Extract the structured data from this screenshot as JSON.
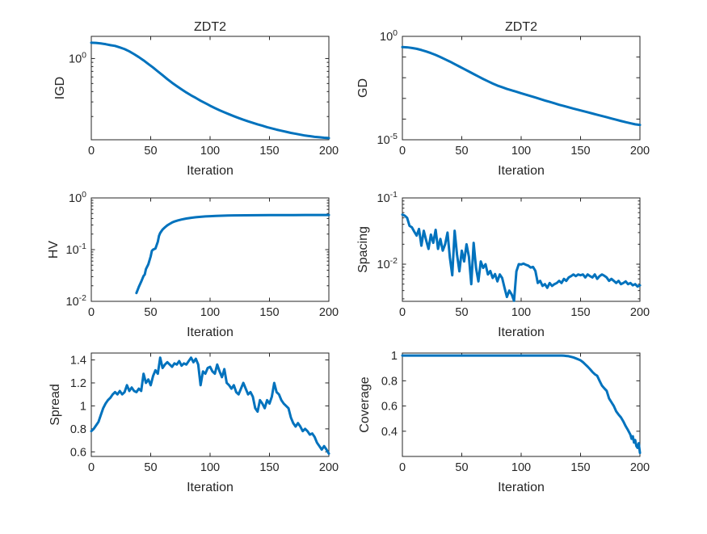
{
  "figure": {
    "background": "#ffffff",
    "axis_color": "#262626",
    "line_color": "#0072BD",
    "line_width": 3
  },
  "shared": {
    "xlabel": "Iteration",
    "xlim": [
      0,
      200
    ],
    "xticks": [
      {
        "v": 0,
        "label": "0"
      },
      {
        "v": 50,
        "label": "50"
      },
      {
        "v": 100,
        "label": "100"
      },
      {
        "v": 150,
        "label": "150"
      },
      {
        "v": 200,
        "label": "200"
      }
    ]
  },
  "chart_data": [
    {
      "type": "line",
      "id": "igd",
      "title": "ZDT2",
      "ylabel": "IGD",
      "xlabel": "Iteration",
      "yscale": "log",
      "ylim": [
        0.105,
        1.85
      ],
      "grid": false,
      "yticks": [
        {
          "v": 1,
          "base": "10",
          "exp": "0"
        }
      ],
      "extra_major_ticks": [],
      "log_minor_ticks": true,
      "x": [
        0,
        4,
        8,
        12,
        16,
        20,
        24,
        28,
        32,
        36,
        40,
        44,
        48,
        52,
        56,
        60,
        64,
        68,
        72,
        76,
        80,
        84,
        88,
        92,
        96,
        100,
        104,
        108,
        112,
        116,
        120,
        124,
        128,
        132,
        136,
        140,
        144,
        148,
        152,
        156,
        160,
        164,
        168,
        172,
        176,
        180,
        184,
        188,
        192,
        196,
        200
      ],
      "y": [
        1.55,
        1.54,
        1.52,
        1.49,
        1.45,
        1.42,
        1.36,
        1.3,
        1.22,
        1.13,
        1.04,
        0.95,
        0.86,
        0.78,
        0.7,
        0.63,
        0.565,
        0.51,
        0.465,
        0.425,
        0.39,
        0.36,
        0.335,
        0.31,
        0.29,
        0.27,
        0.253,
        0.238,
        0.225,
        0.213,
        0.202,
        0.192,
        0.183,
        0.175,
        0.168,
        0.161,
        0.155,
        0.149,
        0.144,
        0.139,
        0.135,
        0.131,
        0.127,
        0.124,
        0.121,
        0.118,
        0.116,
        0.114,
        0.1125,
        0.111,
        0.11
      ]
    },
    {
      "type": "line",
      "id": "gd",
      "title": "ZDT2",
      "ylabel": "GD",
      "xlabel": "Iteration",
      "yscale": "log",
      "ylim": [
        1e-05,
        1
      ],
      "grid": false,
      "yticks": [
        {
          "v": 1,
          "base": "10",
          "exp": "0"
        },
        {
          "v": 1e-05,
          "base": "10",
          "exp": "-5"
        }
      ],
      "extra_major_ticks": [
        0.1,
        0.01,
        0.001,
        0.0001
      ],
      "log_minor_ticks": false,
      "x": [
        0,
        4,
        8,
        12,
        16,
        20,
        24,
        28,
        32,
        36,
        40,
        44,
        48,
        52,
        56,
        60,
        64,
        68,
        72,
        76,
        80,
        84,
        88,
        92,
        96,
        100,
        104,
        108,
        112,
        116,
        120,
        124,
        128,
        132,
        136,
        140,
        144,
        148,
        152,
        156,
        160,
        164,
        168,
        172,
        176,
        180,
        184,
        188,
        192,
        196,
        200
      ],
      "y": [
        0.302,
        0.295,
        0.275,
        0.251,
        0.219,
        0.186,
        0.155,
        0.126,
        0.1,
        0.0776,
        0.0603,
        0.0457,
        0.0347,
        0.0263,
        0.02,
        0.0151,
        0.0115,
        0.0087,
        0.00676,
        0.00525,
        0.00417,
        0.00347,
        0.00288,
        0.00245,
        0.00209,
        0.00178,
        0.00151,
        0.00129,
        0.0011,
        0.00093,
        0.00079,
        0.00068,
        0.00058,
        0.00049,
        0.00043,
        0.00037,
        0.00032,
        0.00028,
        0.000245,
        0.000214,
        0.000186,
        0.000162,
        0.000141,
        0.000123,
        0.000107,
        9.3e-05,
        8.1e-05,
        7.1e-05,
        6.3e-05,
        5.6e-05,
        5.2e-05
      ]
    },
    {
      "type": "line",
      "id": "hv",
      "title": "",
      "ylabel": "HV",
      "xlabel": "Iteration",
      "yscale": "log",
      "ylim": [
        0.01,
        1
      ],
      "grid": false,
      "yticks": [
        {
          "v": 1,
          "base": "10",
          "exp": "0"
        },
        {
          "v": 0.1,
          "base": "10",
          "exp": "-1"
        },
        {
          "v": 0.01,
          "base": "10",
          "exp": "-2"
        }
      ],
      "extra_major_ticks": [],
      "log_minor_ticks": true,
      "x": [
        38,
        40,
        42,
        44,
        45,
        46,
        48,
        50,
        51,
        52,
        54,
        56,
        57,
        58,
        60,
        62,
        64,
        66,
        68,
        70,
        73,
        76,
        80,
        84,
        88,
        92,
        96,
        100,
        105,
        110,
        115,
        120,
        130,
        140,
        150,
        160,
        170,
        180,
        190,
        200
      ],
      "y": [
        0.0145,
        0.019,
        0.024,
        0.031,
        0.033,
        0.042,
        0.052,
        0.074,
        0.095,
        0.1,
        0.105,
        0.142,
        0.185,
        0.21,
        0.245,
        0.27,
        0.295,
        0.315,
        0.335,
        0.35,
        0.368,
        0.383,
        0.4,
        0.413,
        0.424,
        0.432,
        0.439,
        0.444,
        0.45,
        0.454,
        0.457,
        0.459,
        0.462,
        0.464,
        0.465,
        0.466,
        0.4665,
        0.467,
        0.4675,
        0.468
      ]
    },
    {
      "type": "line",
      "id": "spacing",
      "title": "",
      "ylabel": "Spacing",
      "xlabel": "Iteration",
      "yscale": "log",
      "ylim": [
        0.00275,
        0.1
      ],
      "grid": false,
      "yticks": [
        {
          "v": 0.1,
          "base": "10",
          "exp": "-1"
        },
        {
          "v": 0.01,
          "base": "10",
          "exp": "-2"
        }
      ],
      "extra_major_ticks": [],
      "log_minor_ticks": true,
      "x": [
        0,
        2,
        4,
        6,
        8,
        10,
        12,
        14,
        16,
        18,
        20,
        22,
        24,
        26,
        28,
        30,
        32,
        34,
        36,
        38,
        40,
        42,
        44,
        46,
        48,
        50,
        52,
        54,
        56,
        58,
        60,
        62,
        64,
        66,
        68,
        70,
        72,
        74,
        76,
        78,
        80,
        82,
        84,
        86,
        88,
        90,
        92,
        94,
        96,
        98,
        100,
        102,
        104,
        106,
        108,
        110,
        112,
        114,
        116,
        118,
        120,
        122,
        124,
        126,
        128,
        130,
        132,
        134,
        136,
        138,
        140,
        142,
        144,
        146,
        148,
        150,
        152,
        154,
        156,
        158,
        160,
        162,
        164,
        166,
        168,
        170,
        172,
        174,
        176,
        178,
        180,
        182,
        184,
        186,
        188,
        190,
        192,
        194,
        196,
        198,
        200
      ],
      "y": [
        0.056,
        0.054,
        0.05,
        0.038,
        0.036,
        0.031,
        0.027,
        0.034,
        0.019,
        0.032,
        0.023,
        0.017,
        0.028,
        0.021,
        0.033,
        0.017,
        0.024,
        0.016,
        0.02,
        0.03,
        0.0125,
        0.0068,
        0.032,
        0.014,
        0.0078,
        0.016,
        0.011,
        0.02,
        0.013,
        0.005,
        0.021,
        0.0088,
        0.0055,
        0.011,
        0.0088,
        0.01,
        0.007,
        0.0079,
        0.0062,
        0.0071,
        0.0055,
        0.007,
        0.0062,
        0.0044,
        0.0032,
        0.004,
        0.0035,
        0.0028,
        0.0078,
        0.01,
        0.0099,
        0.0102,
        0.0098,
        0.0095,
        0.0089,
        0.0091,
        0.0079,
        0.0052,
        0.0056,
        0.0047,
        0.005,
        0.0044,
        0.0052,
        0.0047,
        0.005,
        0.0052,
        0.0056,
        0.0052,
        0.006,
        0.0056,
        0.0063,
        0.0066,
        0.007,
        0.0066,
        0.007,
        0.0068,
        0.007,
        0.0063,
        0.007,
        0.0066,
        0.0063,
        0.007,
        0.006,
        0.0066,
        0.007,
        0.0067,
        0.0063,
        0.0056,
        0.006,
        0.0056,
        0.0052,
        0.0056,
        0.005,
        0.0052,
        0.0055,
        0.005,
        0.0052,
        0.0048,
        0.005,
        0.0046,
        0.0048
      ]
    },
    {
      "type": "line",
      "id": "spread",
      "title": "",
      "ylabel": "Spread",
      "xlabel": "Iteration",
      "yscale": "linear",
      "ylim": [
        0.56,
        1.46
      ],
      "grid": false,
      "yticks": [
        {
          "v": 0.6,
          "label": "0.6"
        },
        {
          "v": 0.8,
          "label": "0.8"
        },
        {
          "v": 1,
          "label": "1"
        },
        {
          "v": 1.2,
          "label": "1.2"
        },
        {
          "v": 1.4,
          "label": "1.4"
        }
      ],
      "extra_major_ticks": [],
      "log_minor_ticks": false,
      "x": [
        0,
        2,
        4,
        6,
        8,
        10,
        12,
        14,
        16,
        18,
        20,
        22,
        24,
        26,
        28,
        30,
        32,
        34,
        36,
        38,
        40,
        42,
        44,
        46,
        48,
        50,
        52,
        54,
        56,
        58,
        60,
        62,
        64,
        66,
        68,
        70,
        72,
        74,
        76,
        78,
        80,
        82,
        84,
        86,
        88,
        90,
        92,
        94,
        96,
        98,
        100,
        102,
        104,
        106,
        108,
        110,
        112,
        114,
        116,
        118,
        120,
        122,
        124,
        126,
        128,
        130,
        132,
        134,
        136,
        138,
        140,
        142,
        144,
        146,
        148,
        150,
        152,
        154,
        156,
        158,
        160,
        162,
        164,
        166,
        168,
        170,
        172,
        174,
        176,
        178,
        180,
        182,
        184,
        186,
        188,
        190,
        192,
        194,
        196,
        198,
        200
      ],
      "y": [
        0.78,
        0.8,
        0.83,
        0.86,
        0.92,
        0.98,
        1.02,
        1.05,
        1.07,
        1.1,
        1.12,
        1.1,
        1.13,
        1.1,
        1.12,
        1.18,
        1.13,
        1.16,
        1.13,
        1.12,
        1.15,
        1.13,
        1.28,
        1.2,
        1.23,
        1.18,
        1.26,
        1.31,
        1.28,
        1.42,
        1.33,
        1.36,
        1.38,
        1.36,
        1.34,
        1.37,
        1.36,
        1.39,
        1.35,
        1.37,
        1.36,
        1.39,
        1.42,
        1.38,
        1.41,
        1.36,
        1.18,
        1.3,
        1.28,
        1.33,
        1.34,
        1.3,
        1.28,
        1.36,
        1.3,
        1.25,
        1.32,
        1.2,
        1.18,
        1.15,
        1.18,
        1.12,
        1.1,
        1.15,
        1.2,
        1.15,
        1.1,
        1.12,
        1.08,
        0.98,
        0.95,
        1.05,
        1.02,
        0.98,
        1.05,
        1.02,
        1.08,
        1.2,
        1.12,
        1.1,
        1.05,
        1.02,
        1.0,
        0.98,
        0.9,
        0.85,
        0.82,
        0.85,
        0.82,
        0.78,
        0.8,
        0.78,
        0.75,
        0.76,
        0.73,
        0.68,
        0.65,
        0.62,
        0.65,
        0.62,
        0.585
      ]
    },
    {
      "type": "line",
      "id": "coverage",
      "title": "",
      "ylabel": "Coverage",
      "xlabel": "Iteration",
      "yscale": "linear",
      "ylim": [
        0.2,
        1.02
      ],
      "grid": false,
      "yticks": [
        {
          "v": 0.4,
          "label": "0.4"
        },
        {
          "v": 0.6,
          "label": "0.6"
        },
        {
          "v": 0.8,
          "label": "0.8"
        },
        {
          "v": 1,
          "label": "1"
        }
      ],
      "extra_major_ticks": [],
      "log_minor_ticks": false,
      "x": [
        0,
        20,
        40,
        60,
        80,
        100,
        120,
        130,
        134,
        136,
        138,
        140,
        142,
        144,
        146,
        148,
        150,
        152,
        154,
        156,
        158,
        160,
        162,
        164,
        166,
        168,
        170,
        172,
        174,
        176,
        178,
        180,
        182,
        184,
        186,
        188,
        190,
        191,
        192,
        193,
        194,
        195,
        196,
        197,
        198,
        199,
        200
      ],
      "y": [
        1,
        1,
        1,
        1,
        1,
        1,
        1,
        1,
        1,
        0.999,
        0.997,
        0.995,
        0.99,
        0.985,
        0.978,
        0.97,
        0.962,
        0.948,
        0.93,
        0.912,
        0.892,
        0.87,
        0.852,
        0.84,
        0.8,
        0.762,
        0.74,
        0.72,
        0.66,
        0.63,
        0.6,
        0.558,
        0.532,
        0.51,
        0.478,
        0.44,
        0.408,
        0.39,
        0.372,
        0.34,
        0.36,
        0.31,
        0.33,
        0.282,
        0.268,
        0.305,
        0.228
      ]
    }
  ]
}
